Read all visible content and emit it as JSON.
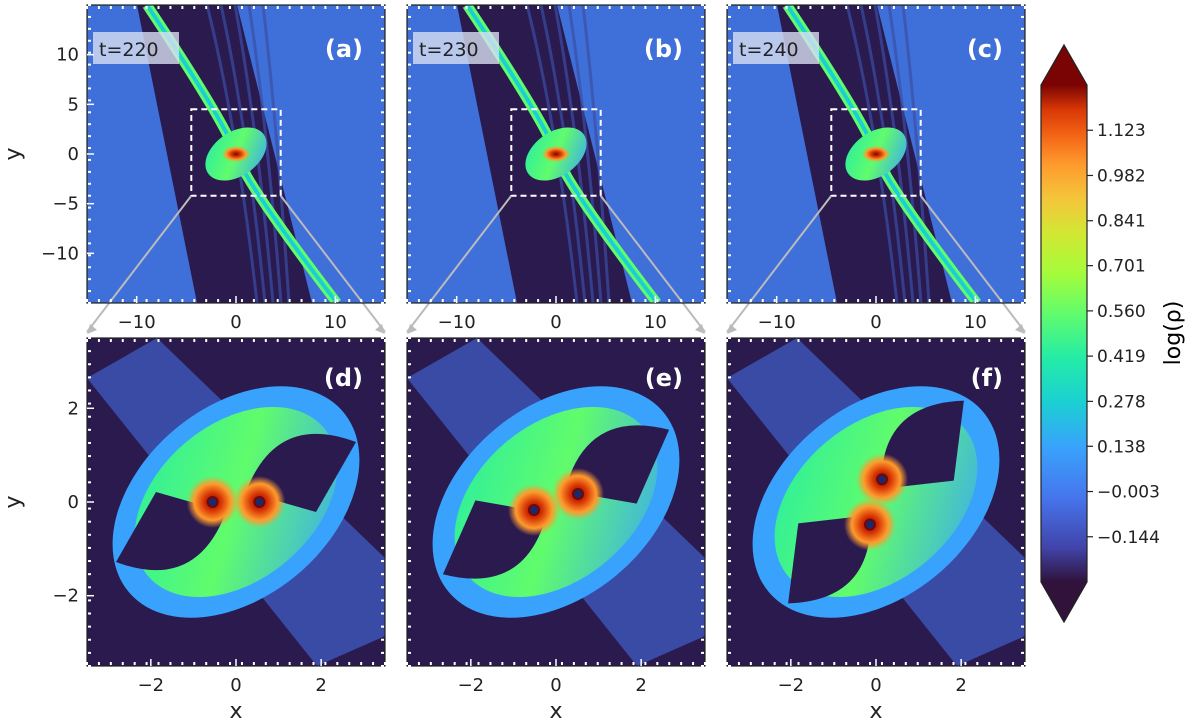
{
  "chart_data": [
    {
      "type": "heatmap",
      "panel": "(a)",
      "time_label": "t=220",
      "xlim": [
        -15,
        15
      ],
      "ylim": [
        -15,
        15
      ],
      "xticks": [
        -10,
        0,
        10
      ],
      "yticks": [
        -10,
        -5,
        0,
        5,
        10
      ],
      "xlabel": "",
      "ylabel": "y",
      "inset_box": {
        "x": [
          -4.5,
          4.5
        ],
        "y": [
          -4.2,
          4.5
        ]
      },
      "binary_angle_deg": 0
    },
    {
      "type": "heatmap",
      "panel": "(b)",
      "time_label": "t=230",
      "xlim": [
        -15,
        15
      ],
      "ylim": [
        -15,
        15
      ],
      "xticks": [
        -10,
        0,
        10
      ],
      "yticks": [],
      "xlabel": "",
      "ylabel": "",
      "inset_box": {
        "x": [
          -4.5,
          4.5
        ],
        "y": [
          -4.2,
          4.5
        ]
      },
      "binary_angle_deg": 20
    },
    {
      "type": "heatmap",
      "panel": "(c)",
      "time_label": "t=240",
      "xlim": [
        -15,
        15
      ],
      "ylim": [
        -15,
        15
      ],
      "xticks": [
        -10,
        0,
        10
      ],
      "yticks": [],
      "xlabel": "",
      "ylabel": "",
      "inset_box": {
        "x": [
          -4.5,
          4.5
        ],
        "y": [
          -4.2,
          4.5
        ]
      },
      "binary_angle_deg": 75
    },
    {
      "type": "heatmap",
      "panel": "(d)",
      "xlim": [
        -3.5,
        3.5
      ],
      "ylim": [
        -3.5,
        3.5
      ],
      "xticks": [
        -2,
        0,
        2
      ],
      "yticks": [
        -2,
        0,
        2
      ],
      "xlabel": "x",
      "ylabel": "y",
      "binary_angle_deg": 0
    },
    {
      "type": "heatmap",
      "panel": "(e)",
      "xlim": [
        -3.5,
        3.5
      ],
      "ylim": [
        -3.5,
        3.5
      ],
      "xticks": [
        -2,
        0,
        2
      ],
      "yticks": [],
      "xlabel": "x",
      "ylabel": "",
      "binary_angle_deg": 20
    },
    {
      "type": "heatmap",
      "panel": "(f)",
      "xlim": [
        -3.5,
        3.5
      ],
      "ylim": [
        -3.5,
        3.5
      ],
      "xticks": [
        -2,
        0,
        2
      ],
      "yticks": [],
      "xlabel": "x",
      "ylabel": "",
      "binary_angle_deg": 75
    }
  ],
  "colorbar": {
    "label": "log(ρ)",
    "colormap": "turbo",
    "vmin": -0.285,
    "vmax": 1.264,
    "ticks": [
      "1.123",
      "0.982",
      "0.841",
      "0.701",
      "0.560",
      "0.419",
      "0.278",
      "0.138",
      "−0.003",
      "−0.144"
    ],
    "extend": "both"
  },
  "colors": {
    "background_low": "#2b1a4e",
    "ambient": "#3f6fd8",
    "peak": "#a3130f",
    "time_label_box": "#d8def2"
  }
}
